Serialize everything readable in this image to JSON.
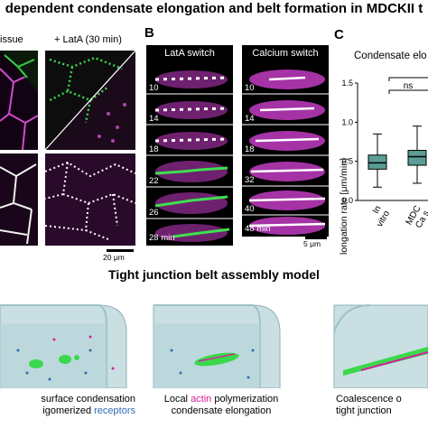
{
  "figure_title": "dependent condensate elongation and belt formation in MDCKII t",
  "panel_b_label": "B",
  "panel_c_label": "C",
  "panel_a": {
    "col1_header": "issue",
    "col2_header": "+ LatA (30 min)",
    "scale_bar": "20 μm"
  },
  "panel_b": {
    "left_header": "LatA switch",
    "right_header": "Calcium switch",
    "left_times": [
      "10",
      "14",
      "18",
      "22",
      "26",
      "28 min"
    ],
    "right_times": [
      "10",
      "14",
      "18",
      "32",
      "40",
      "48 min"
    ],
    "scale_bar": "5 μm"
  },
  "panel_c": {
    "title": "Condensate elo",
    "ylabel": "Elongation rate [μm/min]",
    "yticks": [
      "0.0",
      "0.5",
      "1.0",
      "1.5"
    ],
    "x_labels": [
      [
        "In",
        "vitro"
      ],
      [
        "MDC",
        "Ca s"
      ]
    ],
    "significance": "ns"
  },
  "chart_data": {
    "type": "box",
    "title": "Condensate elo",
    "ylabel": "Elongation rate [μm/min]",
    "ylim": [
      0,
      1.5
    ],
    "categories": [
      "In vitro",
      "MDC Ca s"
    ],
    "boxes": [
      {
        "q1": 0.4,
        "median": 0.48,
        "q3": 0.58,
        "whisker_low": 0.17,
        "whisker_high": 0.85,
        "color": "#5a9e96"
      },
      {
        "q1": 0.45,
        "median": 0.56,
        "q3": 0.64,
        "whisker_low": 0.22,
        "whisker_high": 0.95,
        "color": "#5a9e96"
      }
    ],
    "grid": false
  },
  "model": {
    "title": "Tight junction belt assembly model",
    "captions": [
      {
        "parts": [
          {
            "t": "surface condensation",
            "c": "#000000"
          }
        ],
        "parts2": [
          {
            "t": "igomerized ",
            "c": "#000000"
          },
          {
            "t": "receptors",
            "c": "#2f6db3"
          }
        ]
      },
      {
        "parts": [
          {
            "t": "Local ",
            "c": "#000000"
          },
          {
            "t": "actin",
            "c": "#d4229c"
          },
          {
            "t": " polymerization",
            "c": "#000000"
          }
        ],
        "parts2": [
          {
            "t": "condensate elongation",
            "c": "#000000"
          }
        ]
      },
      {
        "parts": [
          {
            "t": "Coalescence o",
            "c": "#000000"
          }
        ],
        "parts2": [
          {
            "t": "tight junction",
            "c": "#000000"
          }
        ]
      }
    ]
  }
}
